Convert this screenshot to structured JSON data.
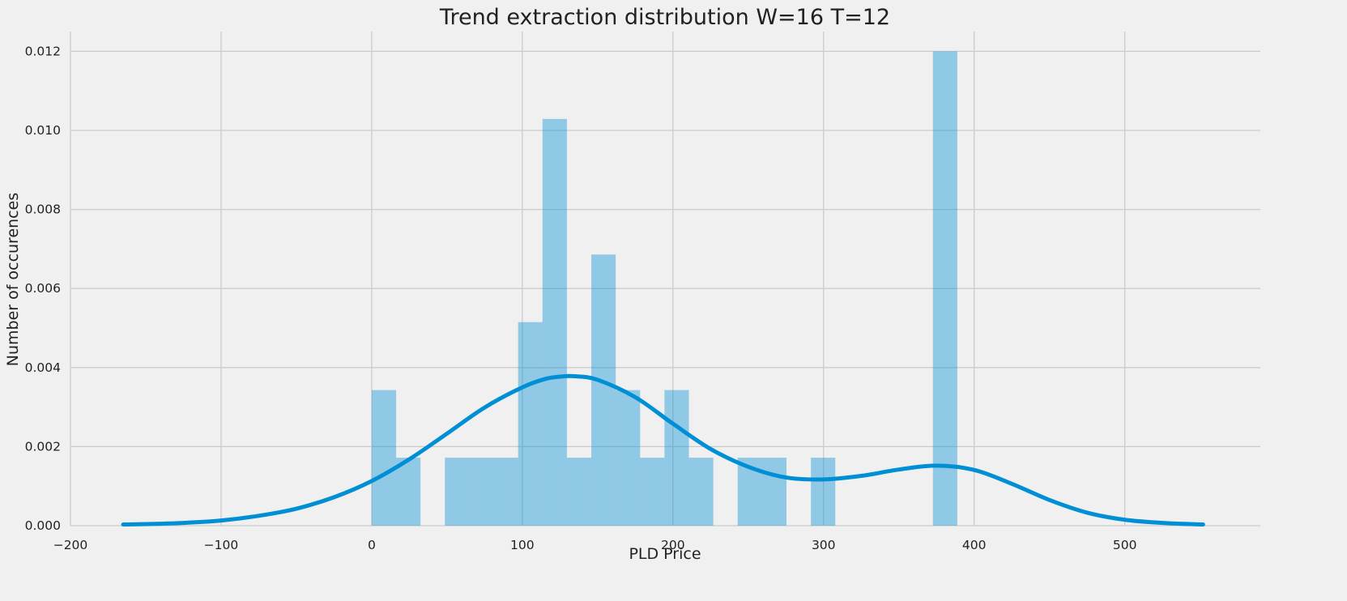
{
  "chart_data": {
    "type": "bar",
    "title": "Trend extraction distribution W=16 T=12",
    "xlabel": "PLD Price",
    "ylabel": "Number of occurences",
    "xlim": [
      -200,
      590
    ],
    "ylim": [
      0,
      0.0125
    ],
    "xticks": [
      -200,
      -100,
      0,
      100,
      200,
      300,
      400,
      500
    ],
    "xtick_labels": [
      "−200",
      "−100",
      "0",
      "100",
      "200",
      "300",
      "400",
      "500"
    ],
    "yticks": [
      0,
      0.002,
      0.004,
      0.006,
      0.008,
      0.01,
      0.012
    ],
    "ytick_labels": [
      "0.000",
      "0.002",
      "0.004",
      "0.006",
      "0.008",
      "0.010",
      "0.012"
    ],
    "grid": true,
    "histogram": {
      "bin_edges": [
        0,
        16.2,
        32.4,
        48.6,
        64.8,
        81,
        97.2,
        113.4,
        129.6,
        145.8,
        162,
        178.2,
        194.4,
        210.6,
        226.8,
        243,
        259.2,
        275.4,
        291.6,
        307.8,
        324,
        340.2,
        356.4,
        372.6,
        388.8
      ],
      "values": [
        0.00343,
        0.00172,
        0,
        0.00172,
        0.00172,
        0.00172,
        0.00515,
        0.01029,
        0.00172,
        0.00686,
        0.00343,
        0.00172,
        0.00343,
        0.00172,
        0,
        0.00172,
        0.00172,
        0,
        0.00172,
        0,
        0,
        0,
        0,
        0.012
      ],
      "color": "#008fd5",
      "alpha": 0.4
    },
    "kde": {
      "x": [
        -165,
        -150,
        -125,
        -100,
        -75,
        -50,
        -25,
        0,
        25,
        50,
        75,
        100,
        115,
        125,
        135,
        150,
        175,
        200,
        225,
        250,
        275,
        300,
        325,
        350,
        375,
        400,
        425,
        450,
        475,
        500,
        525,
        552
      ],
      "y": [
        3e-05,
        4e-05,
        7e-05,
        0.00013,
        0.00025,
        0.00043,
        0.00072,
        0.00113,
        0.00168,
        0.00233,
        0.00299,
        0.0035,
        0.00371,
        0.00377,
        0.00378,
        0.00369,
        0.00325,
        0.00258,
        0.00194,
        0.00149,
        0.00122,
        0.00117,
        0.00126,
        0.00142,
        0.00152,
        0.00141,
        0.00106,
        0.00065,
        0.00033,
        0.00015,
        7e-05,
        3e-05
      ],
      "color": "#008fd5"
    }
  }
}
